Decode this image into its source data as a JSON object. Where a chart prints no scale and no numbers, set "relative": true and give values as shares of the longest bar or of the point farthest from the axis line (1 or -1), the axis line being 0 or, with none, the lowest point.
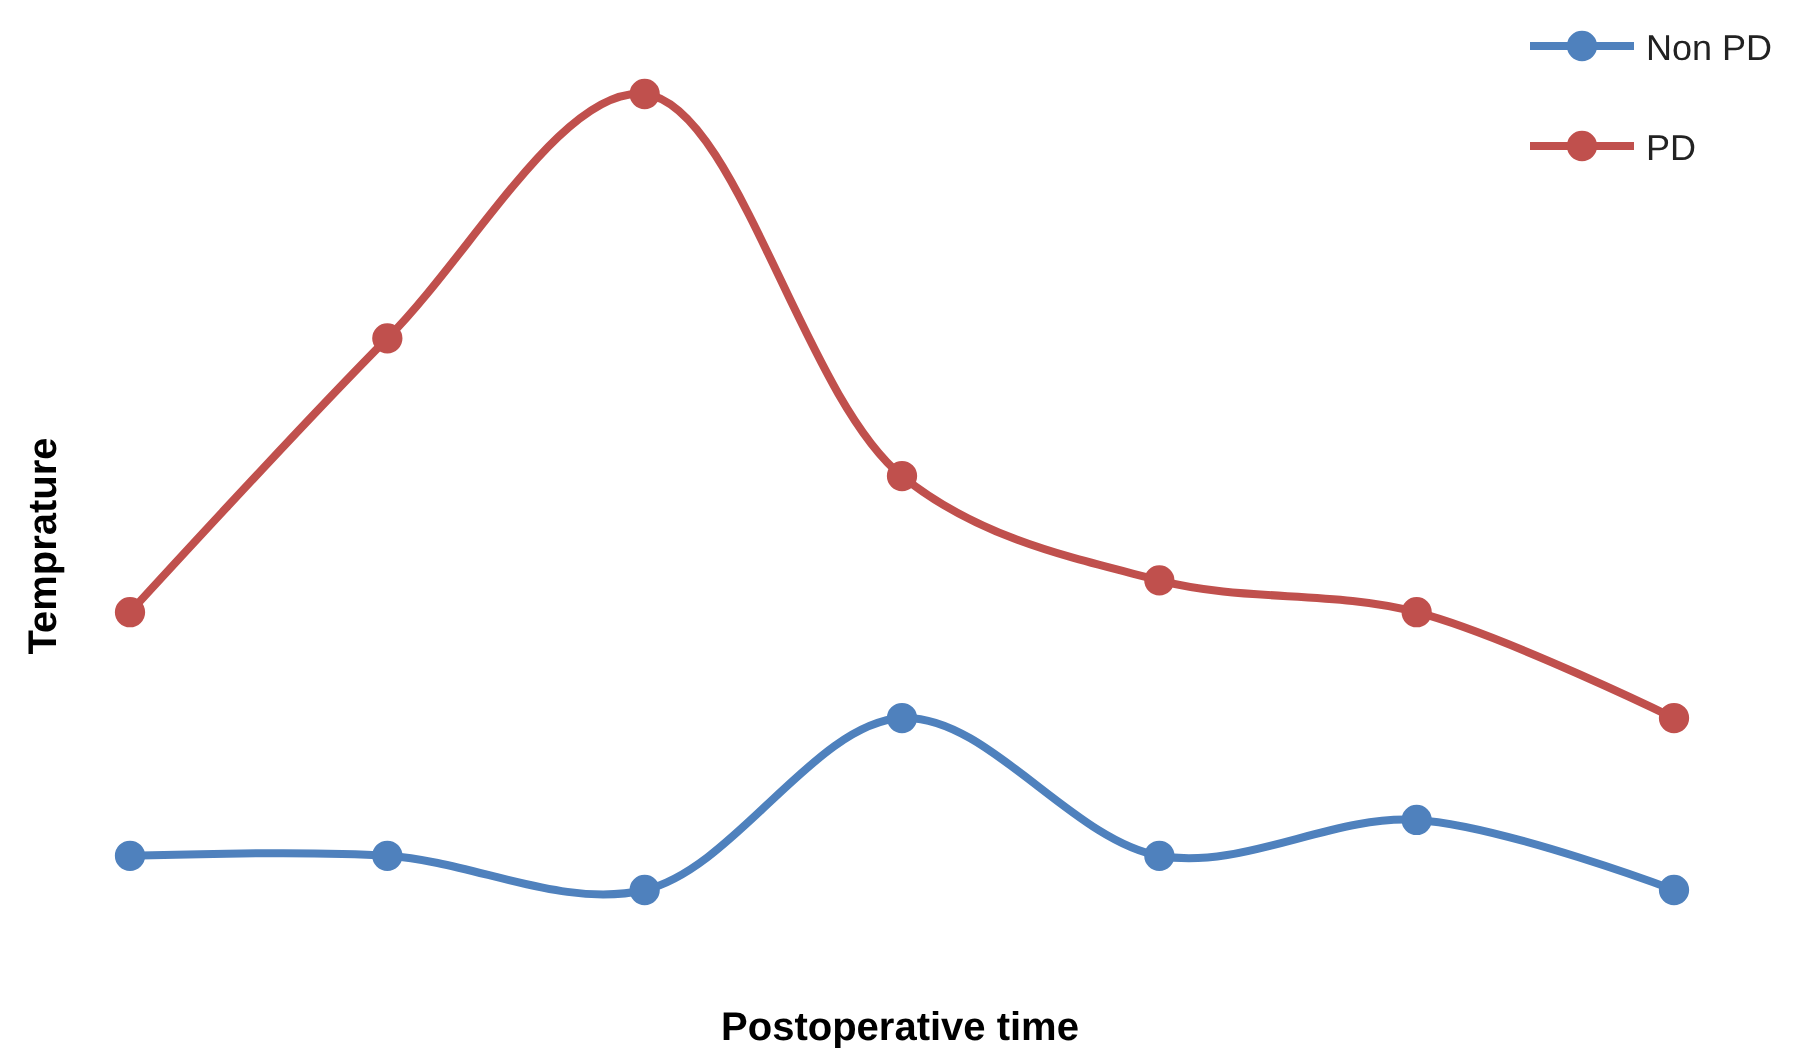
{
  "chart_data": {
    "type": "line",
    "relative": true,
    "xlabel": "Postoperative time",
    "ylabel": "Temprature",
    "categories": [
      null,
      null,
      null,
      null,
      null,
      null,
      null
    ],
    "legend": "top right",
    "marker": "circle",
    "series": [
      {
        "name": "Non PD",
        "color": "#4f81bd",
        "values": [
          0.043,
          0.043,
          0,
          0.216,
          0.043,
          0.088,
          0
        ]
      },
      {
        "name": "PD",
        "color": "#c0504d",
        "values": [
          0.349,
          0.693,
          1,
          0.52,
          0.389,
          0.349,
          0.216
        ]
      }
    ]
  }
}
